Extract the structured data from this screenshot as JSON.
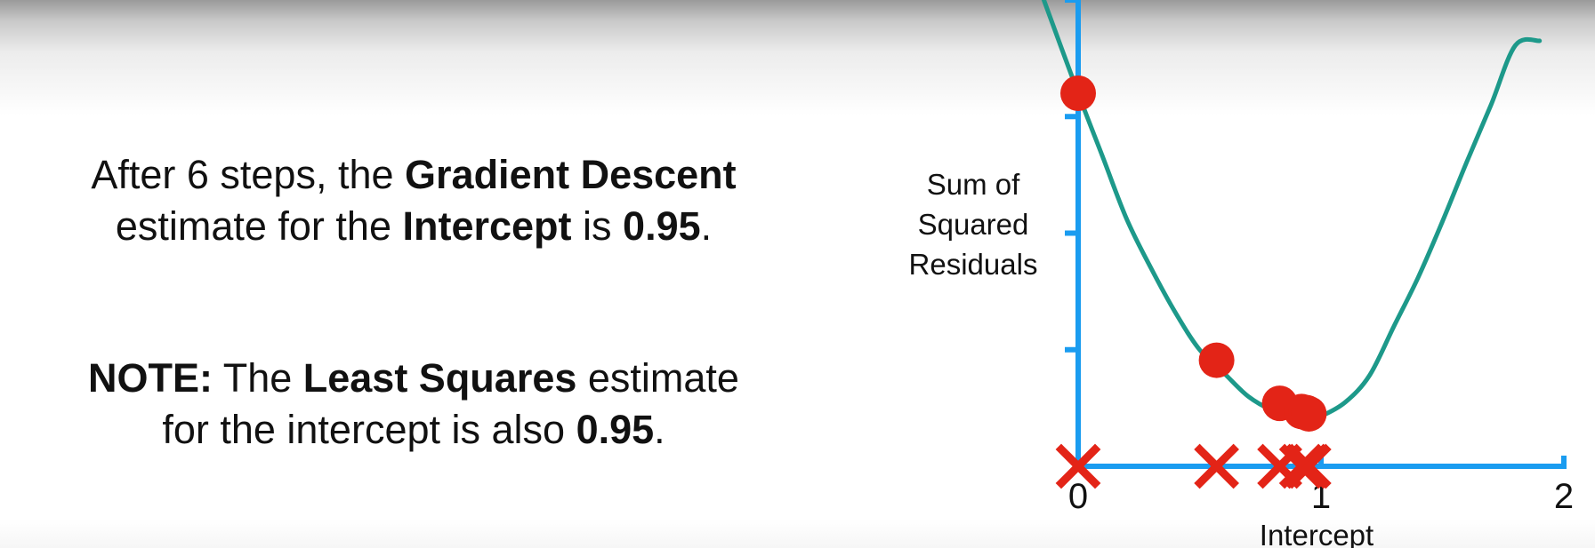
{
  "statement": {
    "part1": "After 6 steps, the ",
    "part2": "Gradient Descent",
    "part3": "estimate for the ",
    "part4": "Intercept",
    "part5": " is ",
    "part6": "0.95",
    "part7": "."
  },
  "note": {
    "label": "NOTE:",
    "part1": " The ",
    "part2": "Least Squares",
    "part3": " estimate",
    "part4": "for the intercept is also ",
    "part5": "0.95",
    "part6": "."
  },
  "chart_data": {
    "type": "line",
    "xlabel": "Intercept",
    "ylabel": "Sum of Squared Residuals",
    "xlim": [
      0,
      2
    ],
    "ylim": [
      0,
      4
    ],
    "x_ticks": [
      0,
      1,
      2
    ],
    "x_tick_labels": [
      "0",
      "1",
      "2"
    ],
    "y_ticks": [
      1,
      2,
      3,
      4
    ],
    "grid": false,
    "curve": {
      "x": [
        -0.15,
        0,
        0.1,
        0.2,
        0.3,
        0.4,
        0.5,
        0.6,
        0.7,
        0.8,
        0.9,
        0.95,
        1.0,
        1.1,
        1.2,
        1.3,
        1.4,
        1.5,
        1.6,
        1.7,
        1.8,
        1.9
      ],
      "y": [
        4.05,
        3.2,
        2.66,
        2.12,
        1.7,
        1.32,
        1.0,
        0.8,
        0.6,
        0.48,
        0.42,
        0.41,
        0.43,
        0.55,
        0.78,
        1.2,
        1.62,
        2.1,
        2.61,
        3.1,
        3.61,
        3.65
      ]
    },
    "steps": {
      "x": [
        0,
        0.57,
        0.83,
        0.92,
        0.94,
        0.95
      ],
      "y": [
        3.2,
        0.91,
        0.54,
        0.47,
        0.46,
        0.45
      ]
    },
    "colors": {
      "axis": "#1a9cf0",
      "curve": "#1d998a",
      "points": "#e32417",
      "markers": "#e32417"
    }
  }
}
